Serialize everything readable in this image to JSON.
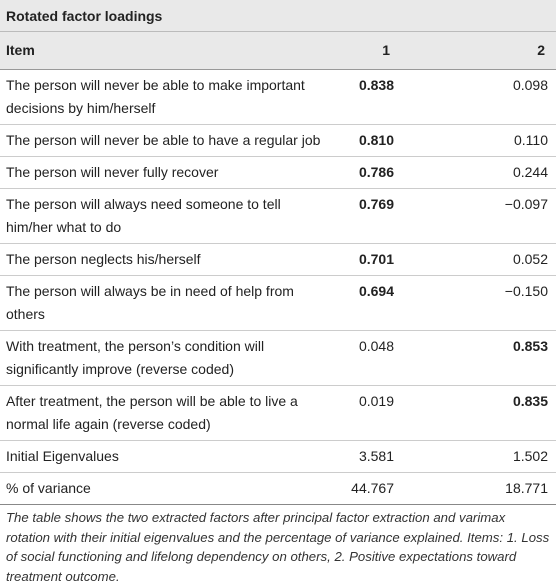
{
  "table": {
    "title": "Rotated factor loadings",
    "header": [
      "Item",
      "1",
      "2"
    ],
    "rows": [
      [
        "The person will never be able to make important decisions by him/herself",
        "0.838",
        "0.098"
      ],
      [
        "The person will never be able to have a regular job",
        "0.810",
        "0.110"
      ],
      [
        "The person will never fully recover",
        "0.786",
        "0.244"
      ],
      [
        "The person will always need someone to tell him/her what to do",
        "0.769",
        "−0.097"
      ],
      [
        "The person neglects his/herself",
        "0.701",
        "0.052"
      ],
      [
        "The person will always be in need of help from others",
        "0.694",
        "−0.150"
      ],
      [
        "With treatment, the person’s condition will significantly improve (reverse coded)",
        "0.048",
        "0.853"
      ],
      [
        "After treatment, the person will be able to live a normal life again (reverse coded)",
        "0.019",
        "0.835"
      ],
      [
        "Initial Eigenvalues",
        "3.581",
        "1.502"
      ],
      [
        "% of variance",
        "44.767",
        "18.771"
      ]
    ],
    "note": "The table shows the two extracted factors after principal factor extraction and varimax rotation with their initial eigenvalues and the percentage of variance explained. Items: 1. Loss of social functioning and lifelong dependency on others, 2. Positive expectations toward treatment outcome."
  }
}
